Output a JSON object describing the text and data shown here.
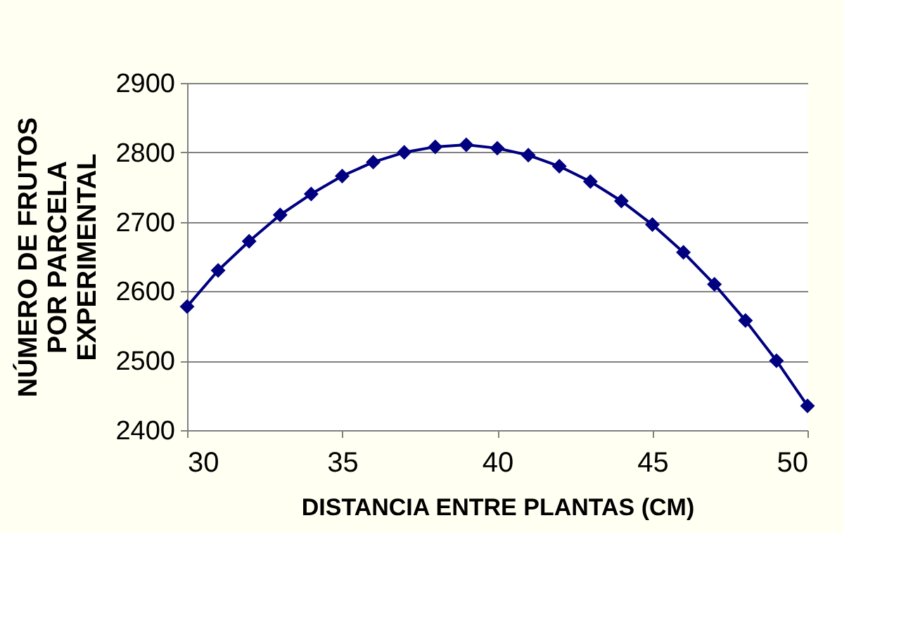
{
  "chart_data": {
    "type": "line",
    "x": [
      30,
      31,
      32,
      33,
      34,
      35,
      36,
      37,
      38,
      39,
      40,
      41,
      42,
      43,
      44,
      45,
      46,
      47,
      48,
      49,
      50
    ],
    "series": [
      {
        "color": "#000080",
        "values": [
          2578,
          2630,
          2672,
          2710,
          2740,
          2766,
          2786,
          2800,
          2808,
          2811,
          2806,
          2796,
          2780,
          2758,
          2730,
          2696,
          2656,
          2610,
          2558,
          2500,
          2435
        ]
      }
    ],
    "xlim": [
      30,
      50
    ],
    "xticks": [
      30,
      35,
      40,
      45,
      50
    ],
    "ylim": [
      2400,
      2900
    ],
    "yticks": [
      2400,
      2500,
      2600,
      2700,
      2800,
      2900
    ],
    "xlabel": "DISTANCIA ENTRE PLANTAS (CM)",
    "ylabel": "NÚMERO DE FRUTOS\nPOR PARCELA\nEXPERIMENTAL",
    "grid": "y",
    "marker": "diamond",
    "line_style": "solid",
    "legend": false
  }
}
